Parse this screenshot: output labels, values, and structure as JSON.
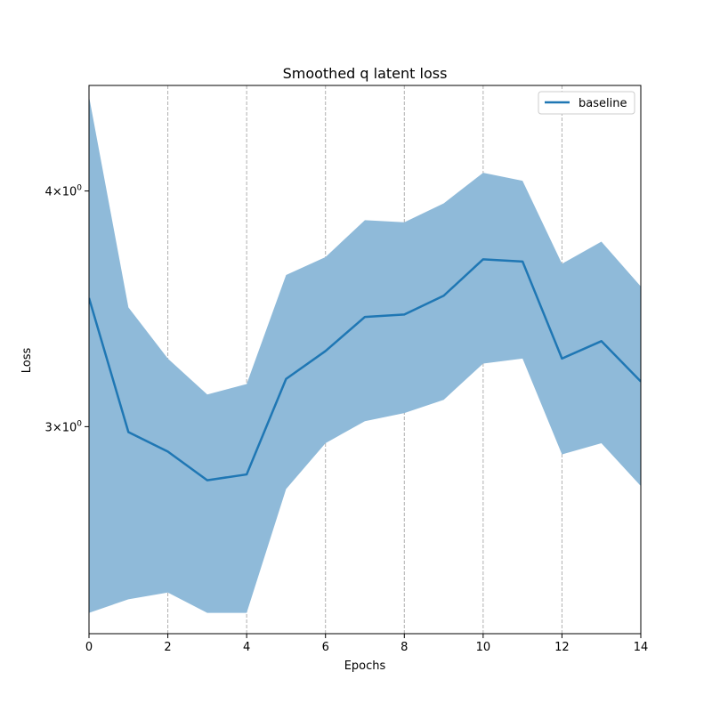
{
  "chart_data": {
    "type": "line",
    "title": "Smoothed q latent loss",
    "xlabel": "Epochs",
    "ylabel": "Loss",
    "xlim": [
      0,
      14
    ],
    "ylim": [
      2.33,
      4.55
    ],
    "yscale": "log",
    "grid": "x-only, dashed",
    "legend_position": "top-right",
    "x_ticks": [
      "0",
      "2",
      "4",
      "6",
      "8",
      "10",
      "12",
      "14"
    ],
    "y_ticks": [
      {
        "value": 3,
        "base": "3",
        "exp": "0"
      },
      {
        "value": 4,
        "base": "4",
        "exp": "0"
      }
    ],
    "x": [
      0,
      1,
      2,
      3,
      4,
      5,
      6,
      7,
      8,
      9,
      10,
      11,
      12,
      13,
      14
    ],
    "series": [
      {
        "name": "baseline",
        "color": "#1f77b4",
        "band_color": "#8fbad9",
        "values": [
          3.51,
          2.98,
          2.91,
          2.81,
          2.83,
          3.18,
          3.29,
          3.43,
          3.44,
          3.52,
          3.68,
          3.67,
          3.26,
          3.33,
          3.17
        ],
        "lower": [
          2.39,
          2.43,
          2.45,
          2.39,
          2.39,
          2.78,
          2.94,
          3.02,
          3.05,
          3.1,
          3.24,
          3.26,
          2.9,
          2.94,
          2.79
        ],
        "upper": [
          4.49,
          3.47,
          3.26,
          3.12,
          3.16,
          3.61,
          3.69,
          3.86,
          3.85,
          3.94,
          4.09,
          4.05,
          3.66,
          3.76,
          3.56
        ]
      }
    ]
  }
}
